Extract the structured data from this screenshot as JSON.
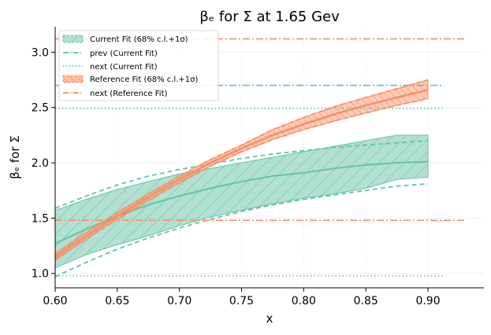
{
  "chart_data": {
    "type": "line",
    "title": "βₑ for Σ at 1.65 Gev",
    "xlabel": "x",
    "ylabel": "βₑ for Σ",
    "xlim": [
      0.6,
      0.945
    ],
    "ylim": [
      0.87,
      3.23
    ],
    "xticks": [
      "0.60",
      "0.65",
      "0.70",
      "0.75",
      "0.80",
      "0.85",
      "0.90"
    ],
    "yticks": [
      "1.0",
      "1.5",
      "2.0",
      "2.5",
      "3.0"
    ],
    "grid": "faint",
    "legend_position": "top-left",
    "colors": {
      "current": "#66c2a5",
      "reference": "#fc8d62"
    },
    "legend": [
      "Current Fit (68% c.l.+1σ)",
      "prev (Current Fit)",
      "next (Current Fit)",
      "Reference Fit (68% c.l.+1σ)",
      "next (Reference Fit)"
    ],
    "series": [
      {
        "name": "Current Fit (68% c.l.+1σ)",
        "x": [
          0.6,
          0.625,
          0.65,
          0.675,
          0.7,
          0.725,
          0.75,
          0.775,
          0.8,
          0.825,
          0.85,
          0.875,
          0.9
        ],
        "center": [
          1.27,
          1.4,
          1.52,
          1.62,
          1.7,
          1.77,
          1.83,
          1.88,
          1.91,
          1.95,
          1.98,
          2.0,
          2.01
        ],
        "lower": [
          1.05,
          1.17,
          1.26,
          1.34,
          1.43,
          1.51,
          1.57,
          1.63,
          1.68,
          1.72,
          1.77,
          1.85,
          1.87
        ],
        "upper": [
          1.57,
          1.67,
          1.76,
          1.83,
          1.9,
          1.95,
          2.0,
          2.05,
          2.1,
          2.15,
          2.2,
          2.25,
          2.25
        ],
        "dashed_upper": [
          1.59,
          1.7,
          1.8,
          1.88,
          1.94,
          1.99,
          2.04,
          2.08,
          2.11,
          2.14,
          2.16,
          2.18,
          2.2
        ],
        "dashed_lower": [
          0.97,
          1.1,
          1.22,
          1.32,
          1.41,
          1.49,
          1.56,
          1.62,
          1.67,
          1.71,
          1.75,
          1.79,
          1.81
        ]
      },
      {
        "name": "Reference Fit (68% c.l.+1σ)",
        "x": [
          0.6,
          0.625,
          0.65,
          0.675,
          0.7,
          0.725,
          0.75,
          0.775,
          0.8,
          0.825,
          0.85,
          0.875,
          0.9
        ],
        "center": [
          1.15,
          1.34,
          1.52,
          1.69,
          1.85,
          2.0,
          2.13,
          2.25,
          2.35,
          2.44,
          2.52,
          2.59,
          2.66
        ],
        "lower": [
          1.12,
          1.31,
          1.49,
          1.66,
          1.82,
          1.97,
          2.1,
          2.21,
          2.3,
          2.38,
          2.45,
          2.52,
          2.58
        ],
        "upper": [
          1.18,
          1.37,
          1.55,
          1.72,
          1.88,
          2.03,
          2.16,
          2.3,
          2.41,
          2.51,
          2.59,
          2.67,
          2.75
        ]
      },
      {
        "name": "prev (Current Fit)",
        "y": 2.7,
        "x_range": [
          0.6,
          0.913
        ]
      },
      {
        "name": "next (Current Fit)",
        "values": [
          2.49,
          0.98
        ],
        "x_range": [
          0.6,
          0.913
        ]
      },
      {
        "name": "next (Reference Fit)",
        "values": [
          3.12,
          1.48
        ],
        "x_range": [
          0.6,
          0.93
        ]
      }
    ]
  }
}
